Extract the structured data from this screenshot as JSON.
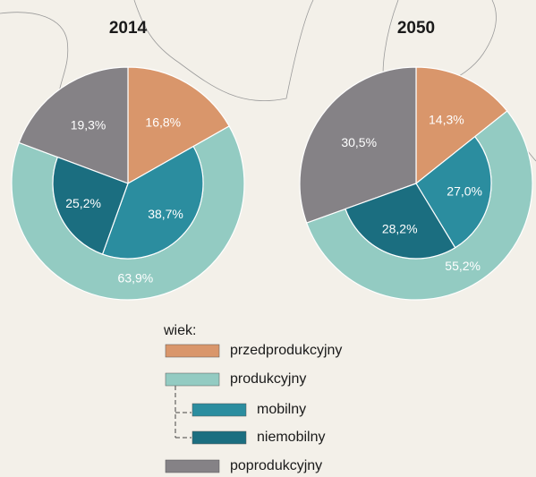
{
  "chart_data": [
    {
      "type": "nested-pie",
      "title": "2014",
      "outer": {
        "categories": [
          "przedprodukcyjny",
          "produkcyjny",
          "poprodukcyjny"
        ],
        "colors": [
          "#d9966b",
          "#93cbc2",
          "#858286"
        ],
        "values": [
          16.8,
          63.9,
          19.3
        ],
        "value_labels": [
          "16,8%",
          "63,9%",
          "19,3%"
        ]
      },
      "inner": {
        "categories": [
          "mobilny",
          "niemobilny"
        ],
        "colors": [
          "#2b8d9f",
          "#1b6e80"
        ],
        "values": [
          38.7,
          25.2
        ],
        "value_labels": [
          "38,7%",
          "25,2%"
        ]
      }
    },
    {
      "type": "nested-pie",
      "title": "2050",
      "outer": {
        "categories": [
          "przedprodukcyjny",
          "produkcyjny",
          "poprodukcyjny"
        ],
        "colors": [
          "#d9966b",
          "#93cbc2",
          "#858286"
        ],
        "values": [
          14.3,
          55.2,
          30.5
        ],
        "value_labels": [
          "14,3%",
          "55,2%",
          "30,5%"
        ]
      },
      "inner": {
        "categories": [
          "mobilny",
          "niemobilny"
        ],
        "colors": [
          "#2b8d9f",
          "#1b6e80"
        ],
        "values": [
          27.0,
          28.2
        ],
        "value_labels": [
          "27,0%",
          "28,2%"
        ]
      }
    }
  ],
  "legend": {
    "title": "wiek:"
  }
}
